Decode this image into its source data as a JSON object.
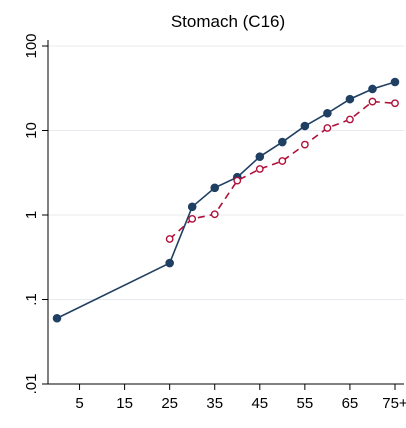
{
  "chart_data": {
    "type": "line",
    "title": "Stomach (C16)",
    "xlabel": "",
    "ylabel": "",
    "y_scale": "log",
    "ylim": [
      0.01,
      100
    ],
    "xlim": [
      -2,
      77
    ],
    "grid": "horizontal",
    "x_tick_labels": [
      "5",
      "15",
      "25",
      "35",
      "45",
      "55",
      "65",
      "75+"
    ],
    "y_tick_labels": [
      "100",
      "10",
      "1",
      ".1",
      ".01"
    ],
    "y_tick_values": [
      100,
      10,
      1,
      0.1,
      0.01
    ],
    "series": [
      {
        "style": "solid",
        "marker": "filled-circle",
        "color": "#1f3f63",
        "x": [
          0,
          25,
          30,
          35,
          40,
          45,
          50,
          55,
          60,
          65,
          70,
          75
        ],
        "values": [
          0.06,
          0.27,
          1.25,
          2.1,
          2.8,
          4.9,
          7.3,
          11.3,
          16.0,
          23.5,
          31.0,
          37.5
        ]
      },
      {
        "style": "dashed",
        "marker": "hollow-circle",
        "color": "#b0103a",
        "x": [
          25,
          30,
          35,
          40,
          45,
          50,
          55,
          60,
          65,
          70,
          75
        ],
        "values": [
          0.52,
          0.9,
          1.02,
          2.55,
          3.5,
          4.35,
          6.8,
          10.7,
          13.5,
          22.0,
          21.0
        ]
      }
    ]
  }
}
